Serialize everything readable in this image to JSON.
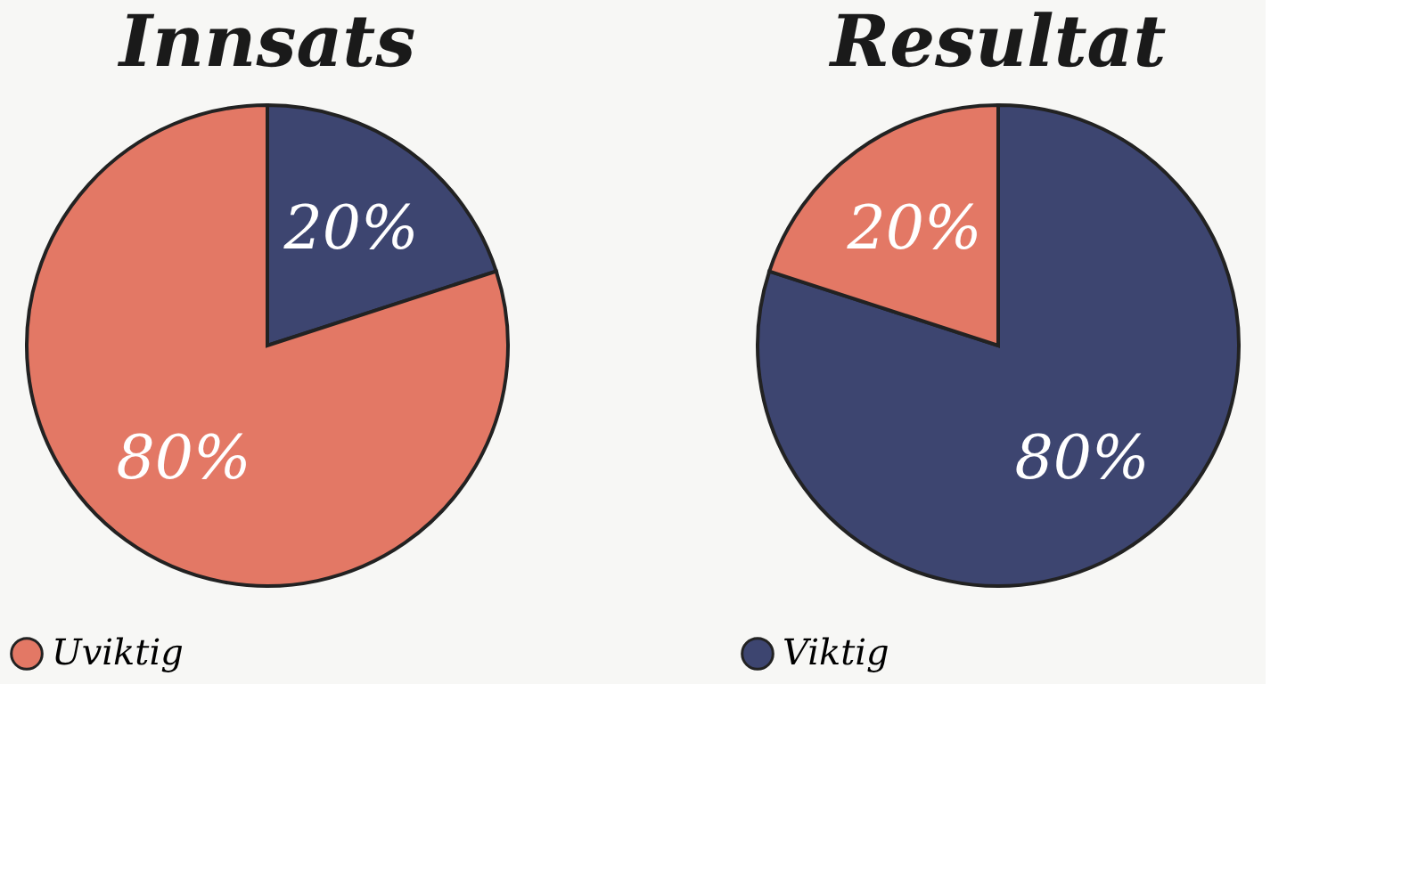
{
  "chart_data": [
    {
      "type": "pie",
      "title": "Innsats",
      "categories": [
        null,
        "Uviktig"
      ],
      "values": [
        20,
        80
      ],
      "colors": [
        "#3d4570",
        "#e37865"
      ],
      "value_labels": [
        "20%",
        "80%"
      ],
      "legend": "bottom"
    },
    {
      "type": "pie",
      "title": "Resultat",
      "categories": [
        "Viktig",
        null
      ],
      "values": [
        80,
        20
      ],
      "colors": [
        "#3d4570",
        "#e37865"
      ],
      "value_labels": [
        "80%",
        "20%"
      ],
      "legend": "bottom"
    }
  ]
}
